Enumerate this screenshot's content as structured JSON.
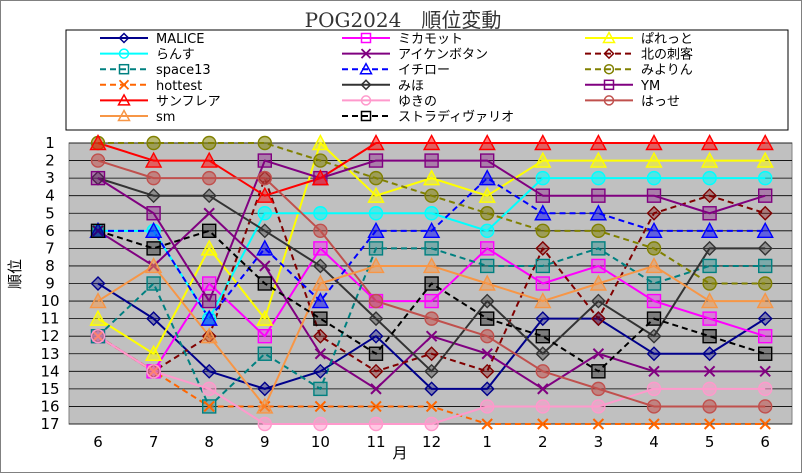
{
  "chart_data": {
    "type": "line",
    "title": "POG2024　順位変動",
    "xlabel": "月",
    "ylabel": "順位",
    "categories": [
      "6",
      "7",
      "8",
      "9",
      "10",
      "11",
      "12",
      "1",
      "2",
      "3",
      "4",
      "5",
      "6"
    ],
    "y_ticks": [
      "1",
      "2",
      "3",
      "4",
      "5",
      "6",
      "7",
      "8",
      "9",
      "10",
      "11",
      "12",
      "13",
      "14",
      "15",
      "16",
      "17"
    ],
    "ylim": [
      1,
      17
    ],
    "y_inverted": true,
    "grid": true,
    "legend_position": "top",
    "series": [
      {
        "name": "MALICE",
        "color": "#00008B",
        "dash": "solid",
        "marker": "diamond",
        "values": [
          9,
          11,
          14,
          15,
          14,
          12,
          15,
          15,
          11,
          11,
          13,
          13,
          11
        ]
      },
      {
        "name": "ミカモット",
        "color": "#FF00FF",
        "dash": "solid",
        "marker": "square",
        "values": [
          12,
          14,
          9,
          12,
          7,
          10,
          10,
          7,
          9,
          8,
          10,
          11,
          12
        ]
      },
      {
        "name": "ぱれっと",
        "color": "#FFFF00",
        "dash": "solid",
        "marker": "triangle",
        "values": [
          11,
          13,
          7,
          11,
          1,
          4,
          3,
          4,
          2,
          2,
          2,
          2,
          2
        ]
      },
      {
        "name": "らんす",
        "color": "#00FFFF",
        "dash": "solid",
        "marker": "circle",
        "values": [
          6,
          6,
          11,
          5,
          5,
          5,
          5,
          6,
          3,
          3,
          3,
          3,
          3
        ]
      },
      {
        "name": "アイケンボタン",
        "color": "#800080",
        "dash": "solid",
        "marker": "x",
        "values": [
          6,
          8,
          5,
          8,
          13,
          15,
          12,
          13,
          15,
          13,
          14,
          14,
          14
        ]
      },
      {
        "name": "北の刺客",
        "color": "#800000",
        "dash": "dash",
        "marker": "diamond",
        "values": [
          12,
          14,
          12,
          3,
          12,
          14,
          13,
          14,
          7,
          11,
          5,
          4,
          5
        ]
      },
      {
        "name": "space13",
        "color": "#008080",
        "dash": "dash",
        "marker": "square",
        "values": [
          12,
          9,
          16,
          13,
          15,
          7,
          7,
          8,
          8,
          7,
          9,
          8,
          8
        ]
      },
      {
        "name": "イチロー",
        "color": "#0000FF",
        "dash": "dash",
        "marker": "triangle",
        "values": [
          6,
          6,
          11,
          7,
          10,
          6,
          6,
          3,
          5,
          5,
          6,
          6,
          6
        ]
      },
      {
        "name": "みよりん",
        "color": "#808000",
        "dash": "dash",
        "marker": "circle",
        "values": [
          1,
          1,
          1,
          1,
          2,
          3,
          4,
          5,
          6,
          6,
          7,
          9,
          9
        ]
      },
      {
        "name": "hottest",
        "color": "#FF6600",
        "dash": "dash",
        "marker": "x",
        "values": [
          12,
          14,
          16,
          16,
          16,
          16,
          16,
          17,
          17,
          17,
          17,
          17,
          17
        ]
      },
      {
        "name": "みほ",
        "color": "#333333",
        "dash": "solid",
        "marker": "diamond",
        "values": [
          3,
          4,
          4,
          6,
          8,
          11,
          14,
          10,
          13,
          10,
          12,
          7,
          7
        ]
      },
      {
        "name": "YM",
        "color": "#800080",
        "dash": "solid",
        "marker": "square",
        "values": [
          3,
          5,
          10,
          2,
          3,
          2,
          2,
          2,
          4,
          4,
          4,
          5,
          4
        ]
      },
      {
        "name": "サンフレア",
        "color": "#FF0000",
        "dash": "solid",
        "marker": "triangle",
        "values": [
          1,
          2,
          2,
          4,
          3,
          1,
          1,
          1,
          1,
          1,
          1,
          1,
          1
        ]
      },
      {
        "name": "ゆきの",
        "color": "#FF99CC",
        "dash": "solid",
        "marker": "circle",
        "values": [
          12,
          14,
          15,
          17,
          17,
          17,
          17,
          16,
          16,
          16,
          15,
          15,
          15
        ]
      },
      {
        "name": "はっせ",
        "color": "#C0504D",
        "dash": "solid",
        "marker": "circle",
        "values": [
          2,
          3,
          3,
          3,
          6,
          10,
          11,
          12,
          14,
          15,
          16,
          16,
          16
        ]
      },
      {
        "name": "sm",
        "color": "#F79646",
        "dash": "solid",
        "marker": "triangle",
        "values": [
          10,
          8,
          12,
          16,
          9,
          8,
          8,
          9,
          10,
          9,
          8,
          10,
          10
        ]
      },
      {
        "name": "ストラディヴァリオ",
        "color": "#000000",
        "dash": "dash",
        "marker": "square",
        "values": [
          6,
          7,
          6,
          9,
          11,
          13,
          9,
          11,
          12,
          14,
          11,
          12,
          13
        ]
      }
    ]
  }
}
